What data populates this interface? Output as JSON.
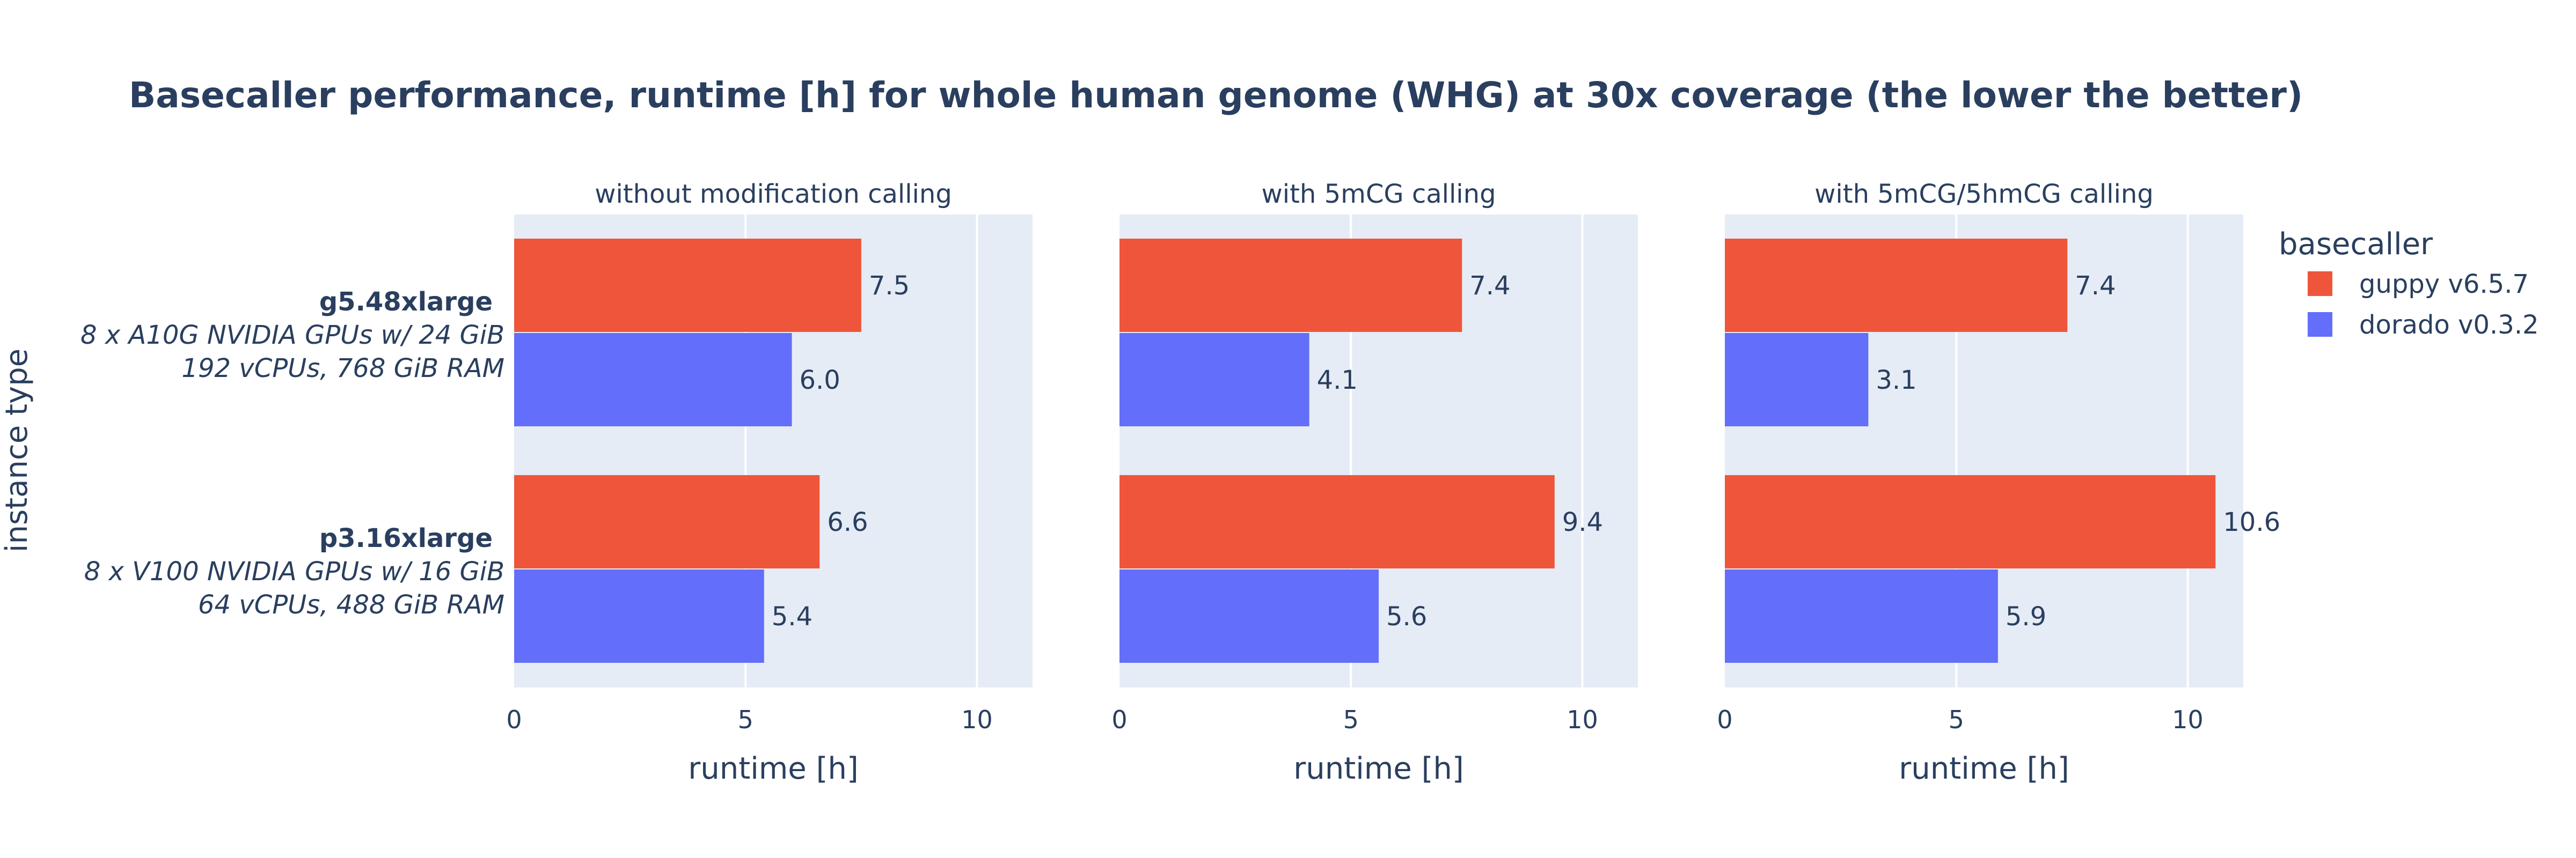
{
  "chart_data": {
    "type": "bar",
    "orientation": "horizontal",
    "title": "Basecaller performance, runtime [h] for whole human genome (WHG) at 30x coverage (the lower the better)",
    "ylabel": "instance type",
    "xlabel": "runtime [h]",
    "xlim": [
      0,
      11.2
    ],
    "xticks": [
      0,
      5,
      10
    ],
    "grid": true,
    "legend": {
      "title": "basecaller",
      "placement": "top-right"
    },
    "categories": [
      {
        "name": "g5.48xlarge",
        "line2": "8 x A10G NVIDIA GPUs w/ 24 GiB",
        "line3": "192 vCPUs, 768 GiB RAM"
      },
      {
        "name": "p3.16xlarge",
        "line2": "8 x V100 NVIDIA GPUs w/ 16 GiB",
        "line3": "64 vCPUs, 488 GiB RAM"
      }
    ],
    "series": [
      {
        "name": "guppy v6.5.7",
        "color": "#EF553B"
      },
      {
        "name": "dorado v0.3.2",
        "color": "#636EFA"
      }
    ],
    "panels": [
      {
        "title": "without modification calling",
        "values": {
          "guppy v6.5.7": [
            7.5,
            6.6
          ],
          "dorado v0.3.2": [
            6.0,
            5.4
          ]
        }
      },
      {
        "title": "with 5mCG calling",
        "values": {
          "guppy v6.5.7": [
            7.4,
            9.4
          ],
          "dorado v0.3.2": [
            4.1,
            5.6
          ]
        }
      },
      {
        "title": "with 5mCG/5hmCG calling",
        "values": {
          "guppy v6.5.7": [
            7.4,
            10.6
          ],
          "dorado v0.3.2": [
            3.1,
            5.9
          ]
        }
      }
    ],
    "plot_bg": "#E5ECF6",
    "grid_color": "#ffffff",
    "text_color": "#2a3f5f"
  }
}
